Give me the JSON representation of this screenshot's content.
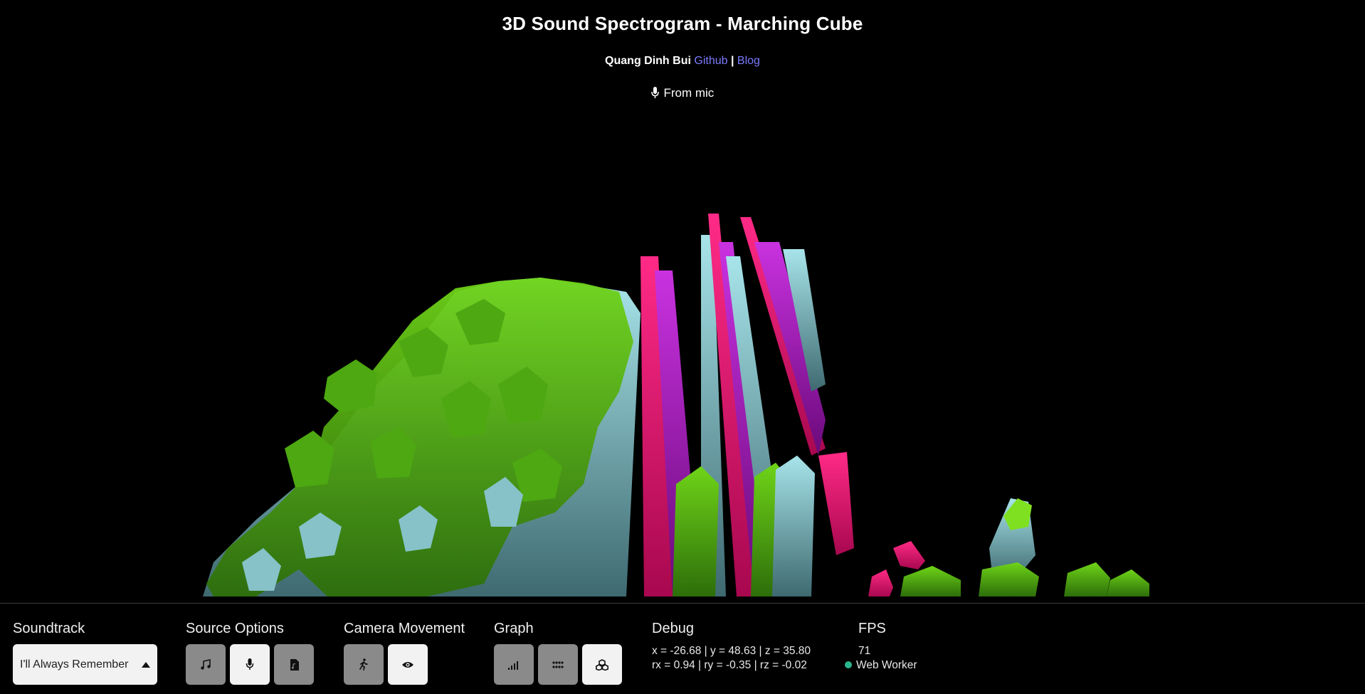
{
  "header": {
    "title": "3D Sound Spectrogram - Marching Cube",
    "author": "Quang Dinh Bui",
    "github_label": "Github",
    "separator": "|",
    "blog_label": "Blog",
    "source_status": "From mic"
  },
  "controls": {
    "soundtrack": {
      "label": "Soundtrack",
      "selected": "I'll Always Remember"
    },
    "source_options": {
      "label": "Source Options",
      "buttons": [
        {
          "icon": "music-note-icon",
          "active": false
        },
        {
          "icon": "microphone-icon",
          "active": true
        },
        {
          "icon": "file-audio-icon",
          "active": false
        }
      ]
    },
    "camera_movement": {
      "label": "Camera Movement",
      "buttons": [
        {
          "icon": "walking-icon",
          "active": false
        },
        {
          "icon": "eye-icon",
          "active": true
        }
      ]
    },
    "graph": {
      "label": "Graph",
      "buttons": [
        {
          "icon": "bars-icon",
          "active": false
        },
        {
          "icon": "grid-dots-icon",
          "active": false
        },
        {
          "icon": "cubes-icon",
          "active": true
        }
      ]
    },
    "debug": {
      "label": "Debug",
      "position": "x = -26.68 | y = 48.63 | z = 35.80",
      "rotation": "rx = 0.94 | ry = -0.35 | rz = -0.02"
    },
    "fps": {
      "label": "FPS",
      "value": "71",
      "worker_label": "Web Worker",
      "worker_status_color": "#2bb58c"
    }
  },
  "colors": {
    "background": "#000000",
    "link": "#7b7bff",
    "green_surface": "#5fc010",
    "teal_surface": "#8fcfd6",
    "magenta_surface": "#e0107a",
    "purple_surface": "#b010c8"
  }
}
